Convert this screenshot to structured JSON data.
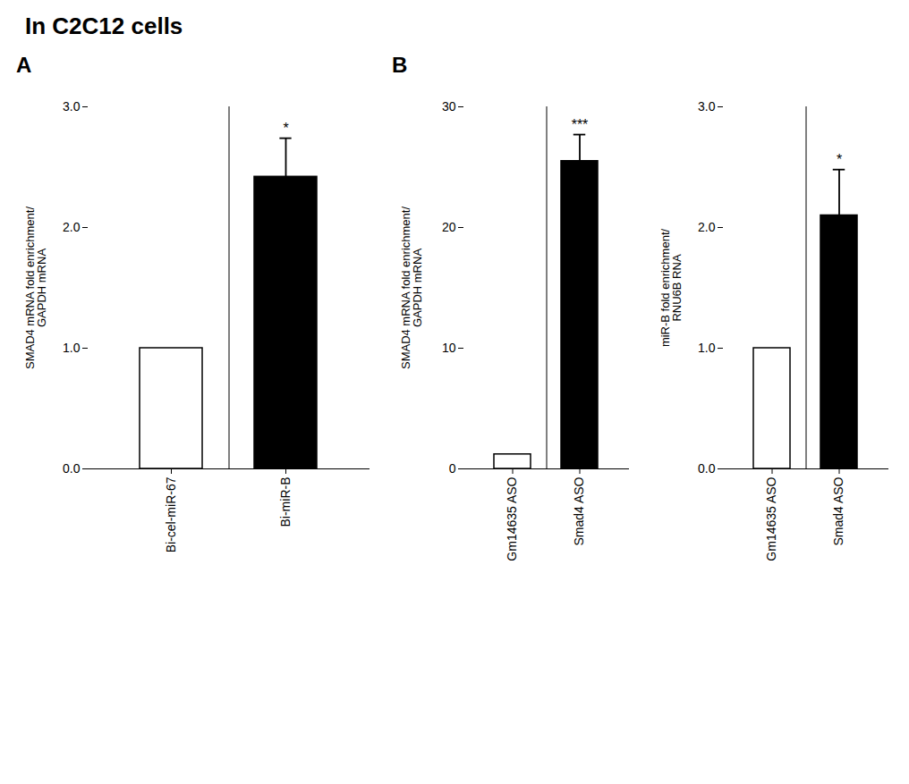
{
  "title": "In C2C12 cells",
  "chart_data": [
    {
      "type": "bar",
      "label": "A",
      "categories": [
        "Bi-cel-miR-67",
        "Bi-miR-B"
      ],
      "values": [
        1.0,
        2.42
      ],
      "errors": [
        0.0,
        0.32
      ],
      "colors": [
        "#ffffff",
        "#000000"
      ],
      "ylabel": "SMAD4 mRNA fold enrichment/\nGAPDH mRNA",
      "ylim": [
        0,
        3
      ],
      "yticks": [
        0,
        1,
        2,
        3
      ],
      "annotations": [
        null,
        "*"
      ]
    },
    {
      "type": "bar",
      "label": "B",
      "categories": [
        "Gm14635 ASO",
        "Smad4 ASO"
      ],
      "values": [
        1.2,
        25.5
      ],
      "errors": [
        0.0,
        2.2
      ],
      "colors": [
        "#ffffff",
        "#000000"
      ],
      "ylabel": "SMAD4 mRNA fold enrichment/\nGAPDH mRNA",
      "ylim": [
        0,
        30
      ],
      "yticks": [
        0,
        10,
        20,
        30
      ],
      "annotations": [
        null,
        "***"
      ]
    },
    {
      "type": "bar",
      "categories": [
        "Gm14635 ASO",
        "Smad4 ASO"
      ],
      "values": [
        1.0,
        2.1
      ],
      "errors": [
        0.0,
        0.38
      ],
      "colors": [
        "#ffffff",
        "#000000"
      ],
      "ylabel": "miR-B fold enrichment/\nRNU6B RNA",
      "ylim": [
        0,
        3
      ],
      "yticks": [
        0,
        1,
        2,
        3
      ],
      "annotations": [
        null,
        "*"
      ]
    }
  ]
}
